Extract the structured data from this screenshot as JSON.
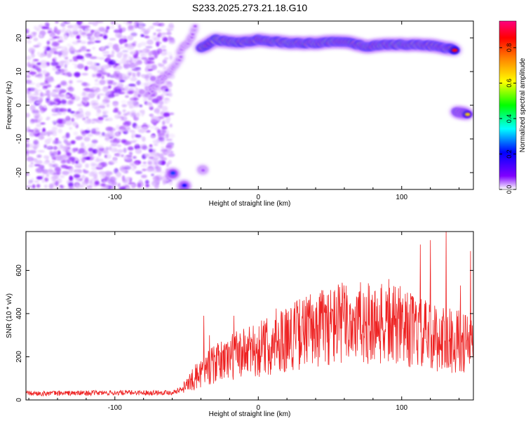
{
  "title": "S233.2025.273.21.18.G10",
  "chart_data": [
    {
      "type": "heatmap",
      "xlabel": "Height of straight line (km)",
      "ylabel": "Frequency (Hz)",
      "xlim": [
        -162,
        150
      ],
      "ylim": [
        -25,
        25
      ],
      "x_ticks": [
        -100,
        0,
        100
      ],
      "x_tick_labels": [
        "-100",
        "0",
        "100"
      ],
      "y_ticks": [
        -20,
        -10,
        0,
        10,
        20
      ],
      "y_tick_labels": [
        "-20",
        "-10",
        "0",
        "10",
        "20"
      ],
      "colorbar": {
        "label": "Normalized spectral amplitude",
        "range": [
          0,
          0.95
        ],
        "ticks": [
          0,
          0.2,
          0.4,
          0.6,
          0.8
        ],
        "tick_labels": [
          "0.0",
          "0.2",
          "0.4",
          "0.6",
          "0.8"
        ],
        "colors": [
          "#ffffff",
          "#8000ff",
          "#0000ff",
          "#00ffff",
          "#00ff00",
          "#ffff00",
          "#ff8000",
          "#ff0000",
          "#ff0080"
        ]
      },
      "features": [
        {
          "name": "noise-field",
          "x_range": [
            -162,
            -62
          ],
          "y_range": [
            -25,
            25
          ],
          "amplitude_range": [
            0.02,
            0.15
          ]
        },
        {
          "name": "curve-segment-upper",
          "points": [
            [
              -55,
              16
            ],
            [
              -48,
              19
            ],
            [
              -44,
              23
            ]
          ],
          "amplitude": 0.1
        },
        {
          "name": "curve-segment-middle",
          "points": [
            [
              -78,
              3
            ],
            [
              -68,
              7
            ],
            [
              -60,
              11
            ],
            [
              -54,
              14
            ]
          ],
          "amplitude": 0.1
        },
        {
          "name": "signal-trace",
          "points": [
            [
              -40,
              17
            ],
            [
              -30,
              19.5
            ],
            [
              -15,
              18.5
            ],
            [
              0,
              19.5
            ],
            [
              20,
              18.5
            ],
            [
              40,
              18.5
            ],
            [
              60,
              19.0
            ],
            [
              75,
              17.5
            ],
            [
              90,
              18.0
            ],
            [
              110,
              18.0
            ],
            [
              125,
              17.5
            ],
            [
              137,
              16.5
            ]
          ],
          "amplitude": 0.9
        },
        {
          "name": "signal-blob-right",
          "points": [
            [
              138,
              -2
            ],
            [
              146,
              -2.5
            ]
          ],
          "amplitude": 0.7
        },
        {
          "name": "blob-bottom-a",
          "points": [
            [
              -60,
              -20.5
            ]
          ],
          "amplitude": 0.35
        },
        {
          "name": "blob-bottom-b",
          "points": [
            [
              -52,
              -24
            ]
          ],
          "amplitude": 0.3
        },
        {
          "name": "blob-bottom-c",
          "points": [
            [
              -39,
              -19
            ]
          ],
          "amplitude": 0.12
        }
      ]
    },
    {
      "type": "line",
      "xlabel": "Height of straight line (km)",
      "ylabel": "SNR (10 * v/v)",
      "xlim": [
        -162,
        150
      ],
      "ylim": [
        0,
        780
      ],
      "x_ticks": [
        -100,
        0,
        100
      ],
      "x_tick_labels": [
        "-100",
        "0",
        "100"
      ],
      "y_ticks": [
        0,
        200,
        400,
        600
      ],
      "y_tick_labels": [
        "0",
        "200",
        "400",
        "600"
      ],
      "color": "#ee2222",
      "envelope": [
        [
          -162,
          30
        ],
        [
          -60,
          35
        ],
        [
          -52,
          55
        ],
        [
          -40,
          130
        ],
        [
          -20,
          200
        ],
        [
          0,
          230
        ],
        [
          20,
          290
        ],
        [
          40,
          330
        ],
        [
          60,
          360
        ],
        [
          80,
          350
        ],
        [
          100,
          340
        ],
        [
          120,
          290
        ],
        [
          140,
          270
        ],
        [
          150,
          250
        ]
      ],
      "spikes": [
        [
          -38,
          390
        ],
        [
          -34,
          300
        ],
        [
          -17,
          390
        ],
        [
          -5,
          290
        ],
        [
          40,
          420
        ],
        [
          60,
          470
        ],
        [
          83,
          470
        ],
        [
          91,
          560
        ],
        [
          113,
          720
        ],
        [
          120,
          740
        ],
        [
          131,
          790
        ],
        [
          141,
          530
        ],
        [
          148,
          690
        ]
      ]
    }
  ]
}
